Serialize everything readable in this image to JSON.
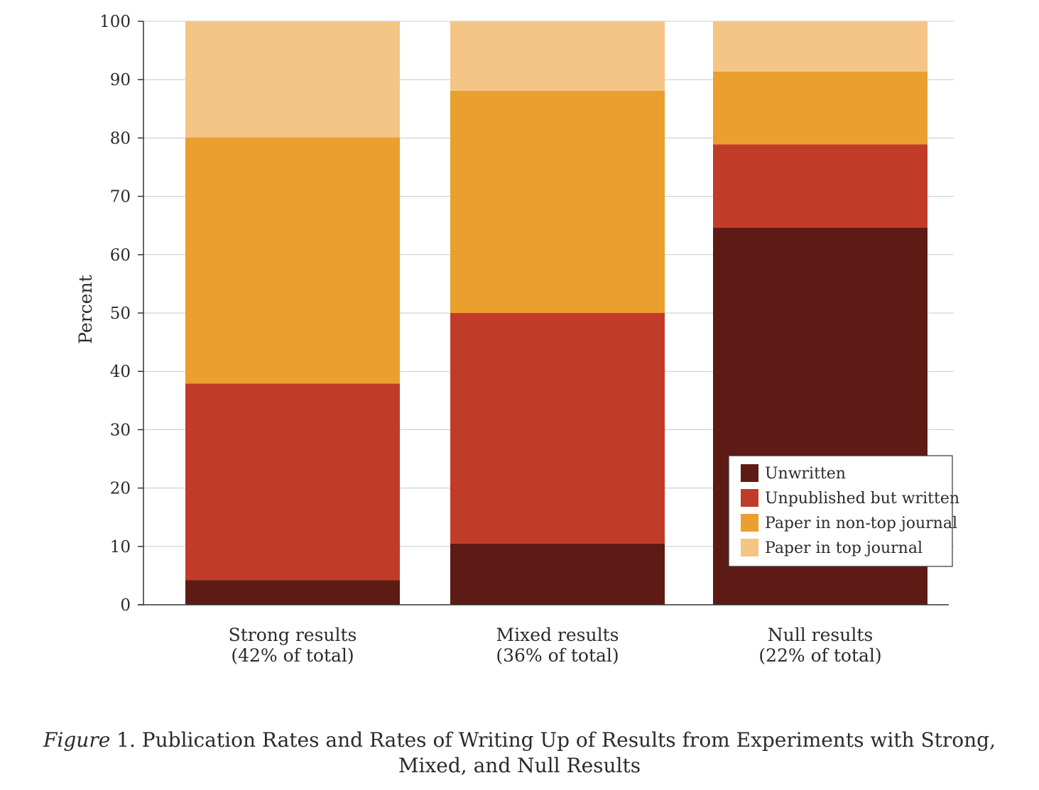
{
  "chart_data": {
    "type": "bar",
    "stacked": true,
    "ylabel": "Percent",
    "ylim": [
      0,
      100
    ],
    "yticks": [
      0,
      10,
      20,
      30,
      40,
      50,
      60,
      70,
      80,
      90,
      100
    ],
    "grid": true,
    "legend_position": "bottom-right",
    "categories": [
      {
        "line1": "Strong results",
        "line2": "(42% of total)"
      },
      {
        "line1": "Mixed results",
        "line2": "(36% of total)"
      },
      {
        "line1": "Null results",
        "line2": "(22% of total)"
      }
    ],
    "series": [
      {
        "name": "Unwritten",
        "color": "#5e1b15",
        "values": [
          4.2,
          10.5,
          64.6
        ]
      },
      {
        "name": "Unpublished but written",
        "color": "#c13b29",
        "values": [
          33.7,
          39.5,
          14.3
        ]
      },
      {
        "name": "Paper in non-top journal",
        "color": "#eb9f2e",
        "values": [
          42.2,
          38.1,
          12.5
        ]
      },
      {
        "name": "Paper in top journal",
        "color": "#f4c585",
        "values": [
          19.9,
          11.9,
          8.6
        ]
      }
    ]
  },
  "caption": {
    "label": "Figure",
    "text": " 1. Publication Rates and Rates of Writing Up of Results from Experiments with Strong, Mixed, and Null Results"
  }
}
